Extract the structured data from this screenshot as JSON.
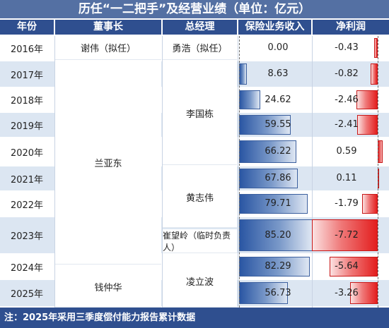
{
  "title": "历任“一二把手”及经营业绩（单位：亿元）",
  "headers": {
    "year": "年份",
    "chairman": "董事长",
    "gm": "总经理",
    "revenue": "保险业务收入",
    "profit": "净利润"
  },
  "chairmen": [
    "谢伟（拟任）",
    "兰亚东",
    "钱仲华"
  ],
  "gms": [
    "勇浩（拟任）",
    "李国栋",
    "黄志伟",
    "崔望岭（临时负责人）",
    "凌立波"
  ],
  "footnote": "注：2025年采用三季度偿付能力报告累计数据",
  "chart_data": {
    "type": "table",
    "years": [
      "2016年",
      "2017年",
      "2018年",
      "2019年",
      "2020年",
      "2021年",
      "2022年",
      "2023年",
      "2024年",
      "2025年"
    ],
    "revenue": [
      0.0,
      8.63,
      24.62,
      59.55,
      66.22,
      67.86,
      79.71,
      85.2,
      82.29,
      56.73
    ],
    "revenue_labels": [
      "0.00",
      "8.63",
      "24.62",
      "59.55",
      "66.22",
      "67.86",
      "79.71",
      "85.20",
      "82.29",
      "56.73"
    ],
    "profit": [
      -0.43,
      -0.82,
      -2.46,
      -2.41,
      0.59,
      0.11,
      -1.79,
      -7.72,
      -5.64,
      -3.26
    ],
    "profit_labels": [
      "-0.43",
      "-0.82",
      "-2.46",
      "-2.41",
      "0.59",
      "0.11",
      "-1.79",
      "-7.72",
      "-5.64",
      "-3.26"
    ]
  },
  "colors": {
    "header_bg": "#2f4f8f",
    "revenue_bar": "#2a56a3",
    "profit_bar": "#e31e1e"
  }
}
